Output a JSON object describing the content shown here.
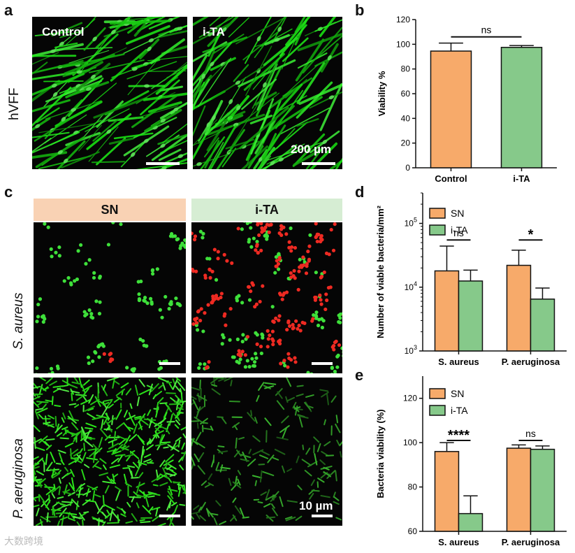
{
  "panels": {
    "a": {
      "letter": "a",
      "row_label": "hVFF",
      "images": [
        {
          "label": "Control",
          "scale": ""
        },
        {
          "label": "i-TA",
          "scale": "200 µm"
        }
      ]
    },
    "c": {
      "letter": "c",
      "columns": [
        "SN",
        "i-TA"
      ],
      "rows": [
        "S. aureus",
        "P. aeruginosa"
      ],
      "scale": "10 µm"
    }
  },
  "colors": {
    "orange": "#F7AA6A",
    "green": "#86C98A",
    "sn_header": "#F9D2B4",
    "ita_header": "#D6EDD3"
  },
  "watermark": "大数跨境",
  "chart_data": [
    {
      "id": "b",
      "letter": "b",
      "type": "bar",
      "categories": [
        "Control",
        "i-TA"
      ],
      "values": [
        94.5,
        97.5
      ],
      "errors": [
        6.5,
        1.5
      ],
      "ylabel": "Viability %",
      "ylim": [
        0,
        120
      ],
      "yticks": [
        0,
        20,
        40,
        60,
        80,
        100,
        120
      ],
      "annotations": [
        {
          "text": "ns",
          "between": [
            0,
            1
          ],
          "y": 106
        }
      ],
      "colors": [
        "#F7AA6A",
        "#86C98A"
      ]
    },
    {
      "id": "d",
      "letter": "d",
      "type": "bar",
      "yscale": "log",
      "categories": [
        "S. aureus",
        "P. aeruginosa"
      ],
      "series": [
        {
          "name": "SN",
          "values": [
            18000,
            22000
          ],
          "errors": [
            26000,
            16000
          ]
        },
        {
          "name": "i-TA",
          "values": [
            12500,
            6500
          ],
          "errors": [
            6000,
            3200
          ]
        }
      ],
      "ylabel": "Number of viable bacteria/mm²",
      "ylim": [
        1000,
        300000
      ],
      "yticks": [
        {
          "value": 1000,
          "base": "10",
          "exp": "3"
        },
        {
          "value": 10000,
          "base": "10",
          "exp": "4"
        },
        {
          "value": 100000,
          "base": "10",
          "exp": "5"
        }
      ],
      "annotations": [
        {
          "text": "ns",
          "category": 0,
          "y": 55000
        },
        {
          "text": "*",
          "category": 1,
          "y": 55000
        }
      ],
      "legend": "top-left"
    },
    {
      "id": "e",
      "letter": "e",
      "type": "bar",
      "categories": [
        "S. aureus",
        "P. aeruginosa"
      ],
      "series": [
        {
          "name": "SN",
          "values": [
            96,
            97.5
          ],
          "errors": [
            4,
            1.5
          ]
        },
        {
          "name": "i-TA",
          "values": [
            68,
            97
          ],
          "errors": [
            8,
            1.5
          ]
        }
      ],
      "ylabel": "Bacteria viability (%)",
      "ylim": [
        60,
        130
      ],
      "yticks": [
        60,
        80,
        100,
        120
      ],
      "annotations": [
        {
          "text": "****",
          "category": 0,
          "y": 101
        },
        {
          "text": "ns",
          "category": 1,
          "y": 101
        }
      ],
      "legend": "top-left"
    }
  ]
}
